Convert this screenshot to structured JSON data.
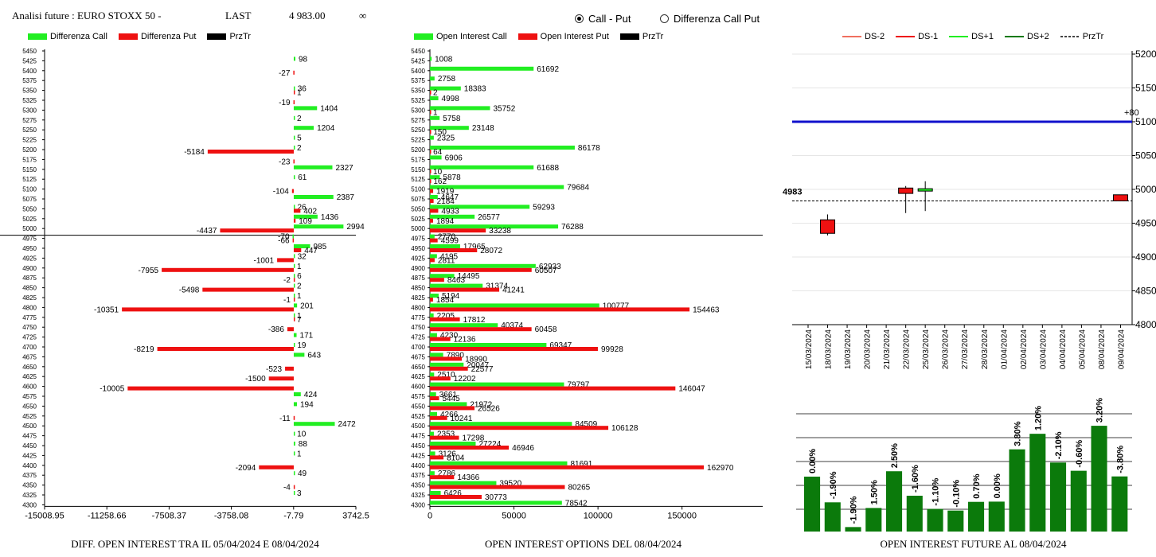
{
  "header": {
    "title": "Analisi future : EURO STOXX 50 -",
    "last_label": "LAST",
    "last_value": "4 983.00",
    "infinity": "∞"
  },
  "radio": {
    "options": [
      {
        "label": "Call - Put",
        "selected": true
      },
      {
        "label": "Differenza Call Put",
        "selected": false
      }
    ]
  },
  "colors": {
    "call": "#22ee22",
    "put": "#ee1111",
    "przTr": "#000000",
    "line": "#1010cc",
    "bar": "#0b7a0b"
  },
  "left": {
    "legend": [
      "Differenza Call",
      "Differenza Put",
      "PrzTr"
    ],
    "caption": "DIFF. OPEN INTEREST TRA IL 05/04/2024 E 08/04/2024"
  },
  "middle": {
    "legend": [
      "Open Interest Call",
      "Open Interest Put",
      "PrzTr"
    ],
    "caption": "OPEN INTEREST OPTIONS DEL 08/04/2024"
  },
  "right": {
    "legend": [
      "DS-2",
      "DS-1",
      "DS+1",
      "DS+2",
      "PrzTr"
    ],
    "caption": "OPEN INTEREST FUTURE AL 08/04/2024",
    "price_label": "4983",
    "line_label": "+80"
  },
  "chart_data": [
    {
      "type": "bar",
      "orientation": "horizontal",
      "strikes": [
        5450,
        5425,
        5400,
        5375,
        5350,
        5325,
        5300,
        5275,
        5250,
        5225,
        5200,
        5175,
        5150,
        5125,
        5100,
        5075,
        5050,
        5025,
        5000,
        4975,
        4950,
        4925,
        4900,
        4875,
        4850,
        4825,
        4800,
        4775,
        4750,
        4725,
        4700,
        4675,
        4650,
        4625,
        4600,
        4575,
        4550,
        4525,
        4500,
        4475,
        4450,
        4425,
        4400,
        4375,
        4350,
        4325,
        4300
      ],
      "series": [
        {
          "name": "Differenza Call",
          "values": [
            null,
            98,
            null,
            null,
            36,
            null,
            1404,
            2,
            1204,
            5,
            2,
            null,
            2327,
            61,
            null,
            2387,
            26,
            1436,
            2994,
            -70,
            985,
            32,
            1,
            6,
            2,
            1,
            201,
            1,
            null,
            171,
            19,
            643,
            null,
            null,
            null,
            424,
            194,
            null,
            2472,
            10,
            88,
            1,
            null,
            49,
            null,
            3,
            null
          ]
        },
        {
          "name": "Differenza Put",
          "values": [
            null,
            null,
            -27,
            null,
            1,
            -19,
            null,
            null,
            null,
            null,
            -5184,
            -23,
            null,
            null,
            -104,
            null,
            402,
            109,
            -4437,
            -66,
            447,
            -1001,
            -7955,
            -2,
            -5498,
            -1,
            -10351,
            7,
            -386,
            null,
            -8219,
            null,
            -523,
            -1500,
            -10005,
            null,
            null,
            -11,
            null,
            null,
            null,
            null,
            -2094,
            null,
            -4,
            null,
            null
          ]
        }
      ],
      "x_ticks": [
        "-15008.95",
        "-11258.66",
        "-7508.37",
        "-3758.08",
        "-7.79",
        "3742.5"
      ],
      "xlim": [
        -15008.95,
        3742.5
      ],
      "przTr": 4983
    },
    {
      "type": "bar",
      "orientation": "horizontal",
      "strikes": [
        5450,
        5425,
        5400,
        5375,
        5350,
        5325,
        5300,
        5275,
        5250,
        5225,
        5200,
        5175,
        5150,
        5125,
        5100,
        5075,
        5050,
        5025,
        5000,
        4975,
        4950,
        4925,
        4900,
        4875,
        4850,
        4825,
        4800,
        4775,
        4750,
        4725,
        4700,
        4675,
        4650,
        4625,
        4600,
        4575,
        4550,
        4525,
        4500,
        4475,
        4450,
        4425,
        4400,
        4375,
        4350,
        4325,
        4300
      ],
      "series": [
        {
          "name": "Open Interest Call",
          "values": [
            null,
            1008,
            61692,
            2758,
            18383,
            4998,
            35752,
            5758,
            23148,
            2325,
            86178,
            6906,
            61688,
            5878,
            79684,
            4647,
            59293,
            26577,
            76288,
            2770,
            17965,
            4195,
            62933,
            14495,
            31374,
            5194,
            100777,
            2205,
            40374,
            4230,
            69347,
            7890,
            20047,
            2510,
            79797,
            3661,
            21972,
            4266,
            84509,
            2353,
            27224,
            3126,
            81691,
            2786,
            39520,
            6426,
            78542
          ]
        },
        {
          "name": "Open Interest Put",
          "values": [
            null,
            null,
            null,
            null,
            2,
            null,
            1,
            null,
            150,
            null,
            64,
            null,
            10,
            162,
            1919,
            2184,
            4933,
            1894,
            33238,
            4599,
            28072,
            2811,
            60507,
            8463,
            41241,
            1854,
            154463,
            17812,
            60458,
            12136,
            99928,
            18990,
            22577,
            12202,
            146047,
            5445,
            26526,
            10241,
            106128,
            17298,
            46946,
            8104,
            162970,
            14366,
            80265,
            30773,
            null
          ]
        }
      ],
      "x_ticks": [
        "0",
        "50000",
        "100000",
        "150000"
      ],
      "xlim": [
        0,
        198000
      ],
      "przTr": 4983
    },
    {
      "type": "candlestick",
      "dates": [
        "15/03/2024",
        "18/03/2024",
        "19/03/2024",
        "20/03/2024",
        "21/03/2024",
        "22/03/2024",
        "25/03/2024",
        "26/03/2024",
        "27/03/2024",
        "28/03/2024",
        "01/04/2024",
        "02/04/2024",
        "03/04/2024",
        "04/04/2024",
        "05/04/2024",
        "08/04/2024",
        "09/04/2024"
      ],
      "candles": [
        {
          "date": "18/03/2024",
          "open": 4955,
          "close": 4935,
          "high": 4963,
          "low": 4932,
          "color": "#ee1111"
        },
        {
          "date": "22/03/2024",
          "open": 5002,
          "close": 4994,
          "high": 5005,
          "low": 4965,
          "color": "#ee1111"
        },
        {
          "date": "25/03/2024",
          "open": 4998,
          "close": 5001,
          "high": 5012,
          "low": 4968,
          "color": "#22ee22"
        },
        {
          "date": "09/04/2024",
          "open": 4992,
          "close": 4983,
          "high": 4992,
          "low": 4983,
          "color": "#ee1111"
        }
      ],
      "hline": 5100,
      "przTr": 4983,
      "y_ticks": [
        5200,
        5150,
        5100,
        5050,
        5000,
        4950,
        4900,
        4850,
        4800
      ],
      "ylim": [
        4800,
        5200
      ]
    },
    {
      "type": "bar",
      "categories": [
        "15/03/2024",
        "18/03/2024",
        "19/03/2024",
        "20/03/2024",
        "21/03/2024",
        "22/03/2024",
        "25/03/2024",
        "26/03/2024",
        "27/03/2024",
        "28/03/2024",
        "01/04/2024",
        "02/04/2024",
        "03/04/2024",
        "04/04/2024",
        "05/04/2024",
        "08/04/2024"
      ],
      "values": [
        233,
        124,
        19,
        100,
        256,
        152,
        96,
        89,
        126,
        127,
        349,
        415,
        293,
        258,
        449,
        234
      ],
      "labels": [
        "0.00%",
        "-1.90%",
        "-1.90%",
        "1.50%",
        "2.50%",
        "-1.60%",
        "-1.10%",
        "-0.10%",
        "0.70%",
        "0.00%",
        "3.80%",
        "1.20%",
        "-2.10%",
        "-0.60%",
        "3.20%",
        "-3.80%"
      ],
      "ylim": [
        0,
        500
      ]
    }
  ]
}
